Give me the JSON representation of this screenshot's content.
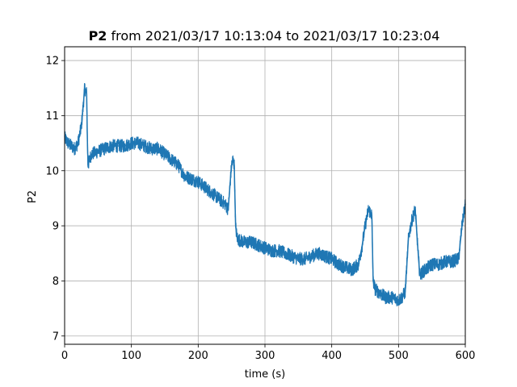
{
  "chart_data": {
    "type": "line",
    "title": {
      "bold": "P2",
      "rest": " from 2021/03/17 10:13:04 to 2021/03/17 10:23:04"
    },
    "xlabel": "time (s)",
    "ylabel": "P2",
    "xlim": [
      0,
      600
    ],
    "ylim": [
      6.85,
      12.25
    ],
    "xticks": [
      0,
      100,
      200,
      300,
      400,
      500,
      600
    ],
    "xtick_labels": [
      "0",
      "100",
      "200",
      "300",
      "400",
      "500",
      "600"
    ],
    "yticks": [
      7,
      8,
      9,
      10,
      11,
      12
    ],
    "ytick_labels": [
      "7",
      "8",
      "9",
      "10",
      "11",
      "12"
    ],
    "grid": true,
    "legend": "none",
    "series": [
      {
        "color": "#1f77b4",
        "x": [
          0,
          5,
          10,
          15,
          20,
          25,
          28,
          30,
          33,
          34,
          35,
          40,
          50,
          60,
          70,
          80,
          90,
          100,
          110,
          120,
          130,
          140,
          150,
          160,
          170,
          180,
          190,
          200,
          210,
          220,
          230,
          240,
          245,
          248,
          250,
          252,
          254,
          256,
          258,
          260,
          270,
          280,
          290,
          300,
          310,
          320,
          330,
          340,
          350,
          360,
          370,
          380,
          390,
          400,
          410,
          420,
          430,
          440,
          445,
          450,
          455,
          460,
          462,
          465,
          470,
          480,
          490,
          500,
          505,
          510,
          512,
          515,
          520,
          525,
          530,
          532,
          535,
          540,
          550,
          560,
          570,
          580,
          590,
          595,
          600
        ],
        "y": [
          10.6,
          10.5,
          10.45,
          10.4,
          10.5,
          10.8,
          11.2,
          11.5,
          11.4,
          10.6,
          10.1,
          10.3,
          10.35,
          10.4,
          10.45,
          10.45,
          10.45,
          10.5,
          10.5,
          10.45,
          10.4,
          10.4,
          10.3,
          10.2,
          10.1,
          9.9,
          9.85,
          9.8,
          9.7,
          9.6,
          9.5,
          9.4,
          9.3,
          9.8,
          10.1,
          10.2,
          10.1,
          9.0,
          8.8,
          8.75,
          8.7,
          8.7,
          8.65,
          8.6,
          8.55,
          8.55,
          8.5,
          8.45,
          8.4,
          8.4,
          8.45,
          8.5,
          8.45,
          8.4,
          8.3,
          8.25,
          8.2,
          8.3,
          8.6,
          9.0,
          9.3,
          9.2,
          8.0,
          7.85,
          7.8,
          7.7,
          7.7,
          7.65,
          7.7,
          7.8,
          8.2,
          8.8,
          9.1,
          9.3,
          8.4,
          8.1,
          8.15,
          8.2,
          8.3,
          8.3,
          8.35,
          8.35,
          8.4,
          9.0,
          9.4
        ]
      }
    ]
  }
}
